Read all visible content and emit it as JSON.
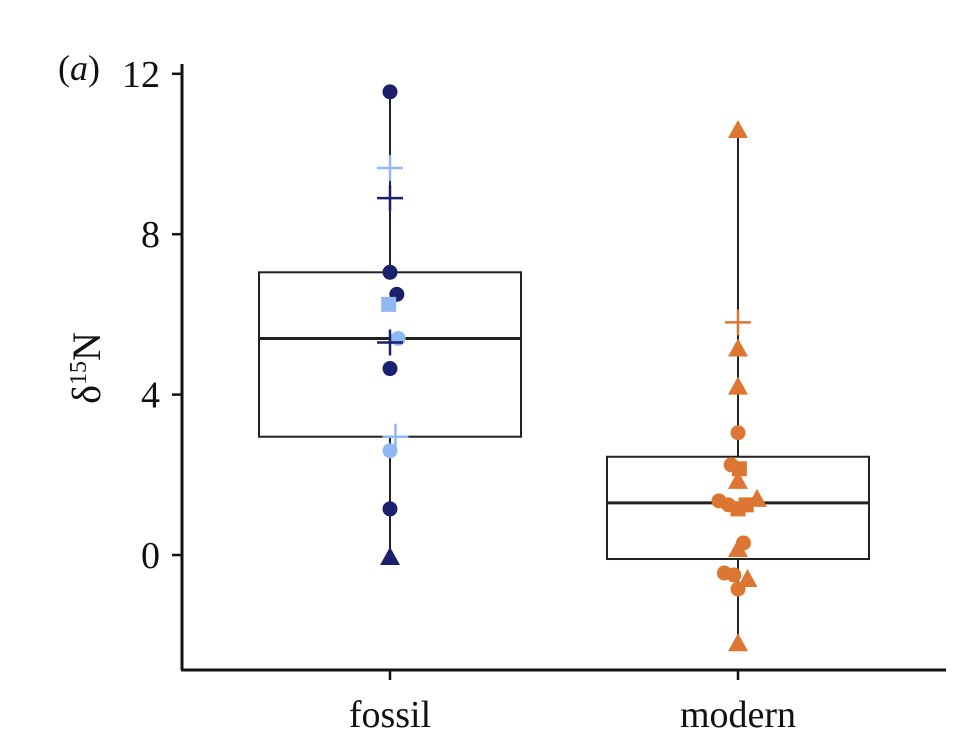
{
  "panel_label_prefix": "(",
  "panel_label_letter": "a",
  "panel_label_suffix": ")",
  "chart_data": {
    "type": "box",
    "ylabel_symbol": "δ",
    "ylabel_superscript": "15",
    "ylabel_element": "N",
    "categories": [
      "fossil",
      "modern"
    ],
    "ylim": [
      -3,
      12.3
    ],
    "yticks": [
      0,
      4,
      8,
      12
    ],
    "grid": false,
    "colors": {
      "dark_blue": "#1b1f6e",
      "light_blue": "#8fb8f0",
      "orange": "#de7633"
    },
    "boxes": [
      {
        "category": "fossil",
        "q1": 2.95,
        "median": 5.4,
        "q3": 7.05,
        "whisker_low": 0.0,
        "whisker_high": 11.55
      },
      {
        "category": "modern",
        "q1": -0.1,
        "median": 1.3,
        "q3": 2.45,
        "whisker_low": -2.2,
        "whisker_high": 10.6
      }
    ],
    "points": [
      {
        "category": "fossil",
        "offset": 0.0,
        "y": 11.55,
        "shape": "circle",
        "color": "dark_blue"
      },
      {
        "category": "fossil",
        "offset": 0.0,
        "y": 9.65,
        "shape": "plus",
        "color": "light_blue"
      },
      {
        "category": "fossil",
        "offset": 0.0,
        "y": 8.9,
        "shape": "plus",
        "color": "dark_blue"
      },
      {
        "category": "fossil",
        "offset": 0.0,
        "y": 7.05,
        "shape": "circle",
        "color": "dark_blue"
      },
      {
        "category": "fossil",
        "offset": 0.05,
        "y": 6.5,
        "shape": "circle",
        "color": "dark_blue"
      },
      {
        "category": "fossil",
        "offset": -0.01,
        "y": 6.25,
        "shape": "square",
        "color": "light_blue"
      },
      {
        "category": "fossil",
        "offset": 0.06,
        "y": 5.4,
        "shape": "circle",
        "color": "light_blue"
      },
      {
        "category": "fossil",
        "offset": 0.0,
        "y": 5.3,
        "shape": "plus",
        "color": "dark_blue"
      },
      {
        "category": "fossil",
        "offset": 0.0,
        "y": 4.65,
        "shape": "circle",
        "color": "dark_blue"
      },
      {
        "category": "fossil",
        "offset": 0.04,
        "y": 2.95,
        "shape": "plus",
        "color": "light_blue"
      },
      {
        "category": "fossil",
        "offset": 0.0,
        "y": 2.6,
        "shape": "circle",
        "color": "light_blue"
      },
      {
        "category": "fossil",
        "offset": 0.0,
        "y": 1.15,
        "shape": "circle",
        "color": "dark_blue"
      },
      {
        "category": "fossil",
        "offset": 0.0,
        "y": -0.05,
        "shape": "triangle",
        "color": "dark_blue"
      },
      {
        "category": "modern",
        "offset": 0.0,
        "y": 10.6,
        "shape": "triangle",
        "color": "orange"
      },
      {
        "category": "modern",
        "offset": 0.0,
        "y": 5.8,
        "shape": "plus",
        "color": "orange"
      },
      {
        "category": "modern",
        "offset": 0.0,
        "y": 5.15,
        "shape": "triangle",
        "color": "orange"
      },
      {
        "category": "modern",
        "offset": 0.0,
        "y": 4.2,
        "shape": "triangle",
        "color": "orange"
      },
      {
        "category": "modern",
        "offset": 0.0,
        "y": 3.05,
        "shape": "circle",
        "color": "orange"
      },
      {
        "category": "modern",
        "offset": -0.05,
        "y": 2.25,
        "shape": "circle",
        "color": "orange"
      },
      {
        "category": "modern",
        "offset": 0.01,
        "y": 2.15,
        "shape": "square",
        "color": "orange"
      },
      {
        "category": "modern",
        "offset": 0.0,
        "y": 1.85,
        "shape": "triangle",
        "color": "orange"
      },
      {
        "category": "modern",
        "offset": -0.14,
        "y": 1.35,
        "shape": "circle",
        "color": "orange"
      },
      {
        "category": "modern",
        "offset": -0.07,
        "y": 1.25,
        "shape": "circle",
        "color": "orange"
      },
      {
        "category": "modern",
        "offset": 0.0,
        "y": 1.15,
        "shape": "square",
        "color": "orange"
      },
      {
        "category": "modern",
        "offset": 0.06,
        "y": 1.25,
        "shape": "square",
        "color": "orange"
      },
      {
        "category": "modern",
        "offset": 0.14,
        "y": 1.4,
        "shape": "triangle",
        "color": "orange"
      },
      {
        "category": "modern",
        "offset": 0.0,
        "y": 0.15,
        "shape": "triangle",
        "color": "orange"
      },
      {
        "category": "modern",
        "offset": 0.04,
        "y": 0.3,
        "shape": "circle",
        "color": "orange"
      },
      {
        "category": "modern",
        "offset": -0.1,
        "y": -0.45,
        "shape": "circle",
        "color": "orange"
      },
      {
        "category": "modern",
        "offset": -0.03,
        "y": -0.5,
        "shape": "circle",
        "color": "orange"
      },
      {
        "category": "modern",
        "offset": 0.07,
        "y": -0.6,
        "shape": "triangle",
        "color": "orange"
      },
      {
        "category": "modern",
        "offset": 0.0,
        "y": -0.85,
        "shape": "circle",
        "color": "orange"
      },
      {
        "category": "modern",
        "offset": 0.0,
        "y": -2.2,
        "shape": "triangle",
        "color": "orange"
      }
    ]
  }
}
